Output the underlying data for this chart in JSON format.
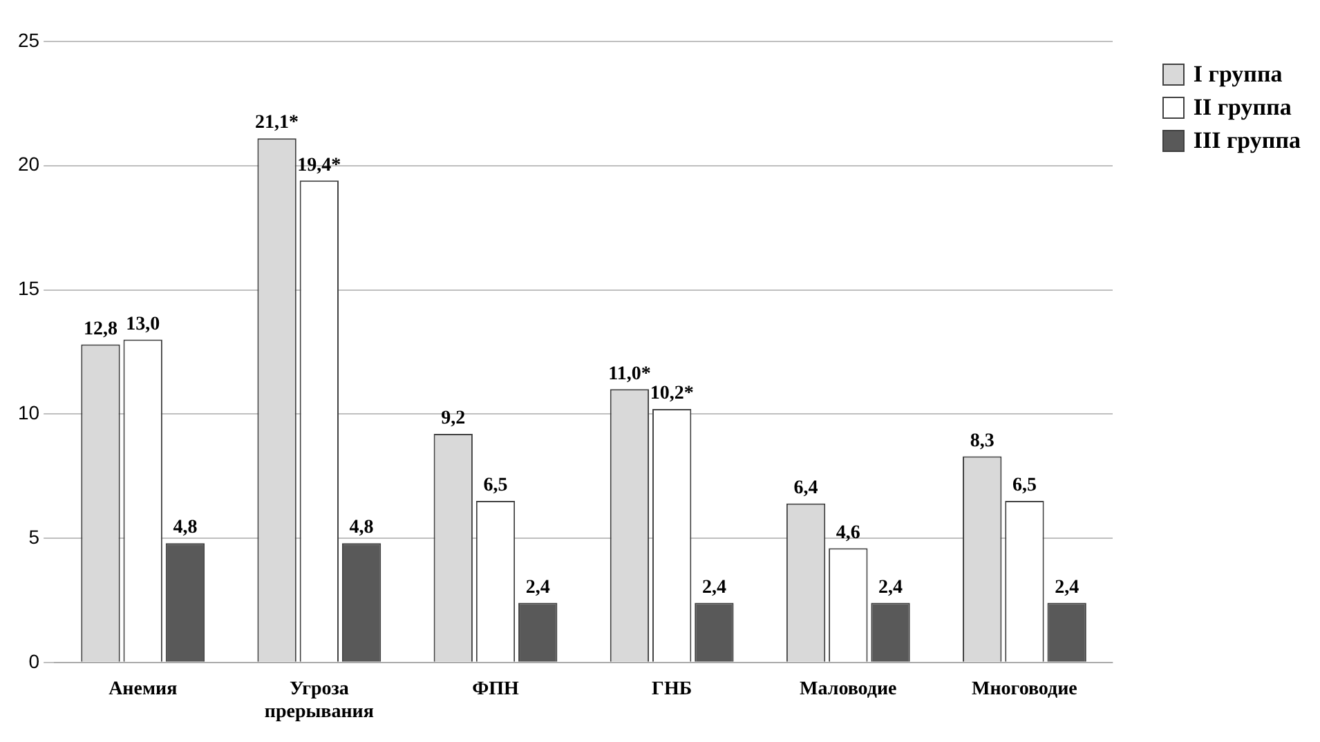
{
  "chart_data": {
    "type": "bar",
    "categories": [
      "Анемия",
      "Угроза прерывания",
      "ФПН",
      "ГНБ",
      "Маловодие",
      "Многоводие"
    ],
    "series": [
      {
        "name": "I группа",
        "color": "#d9d9d9",
        "values": [
          12.8,
          21.1,
          9.2,
          11.0,
          6.4,
          8.3
        ],
        "value_labels": [
          "12,8",
          "21,1*",
          "9,2",
          "11,0*",
          "6,4",
          "8,3"
        ]
      },
      {
        "name": "II группа",
        "color": "#ffffff",
        "values": [
          13.0,
          19.4,
          6.5,
          10.2,
          4.6,
          6.5
        ],
        "value_labels": [
          "13,0",
          "19,4*",
          "6,5",
          "10,2*",
          "4,6",
          "6,5"
        ]
      },
      {
        "name": "III группа",
        "color": "#595959",
        "values": [
          4.8,
          4.8,
          2.4,
          2.4,
          2.4,
          2.4
        ],
        "value_labels": [
          "4,8",
          "4,8",
          "2,4",
          "2,4",
          "2,4",
          "2,4"
        ]
      }
    ],
    "ylim": [
      0,
      25
    ],
    "yticks": [
      0,
      5,
      10,
      15,
      20,
      25
    ],
    "grid": "y",
    "legend": "top right"
  }
}
